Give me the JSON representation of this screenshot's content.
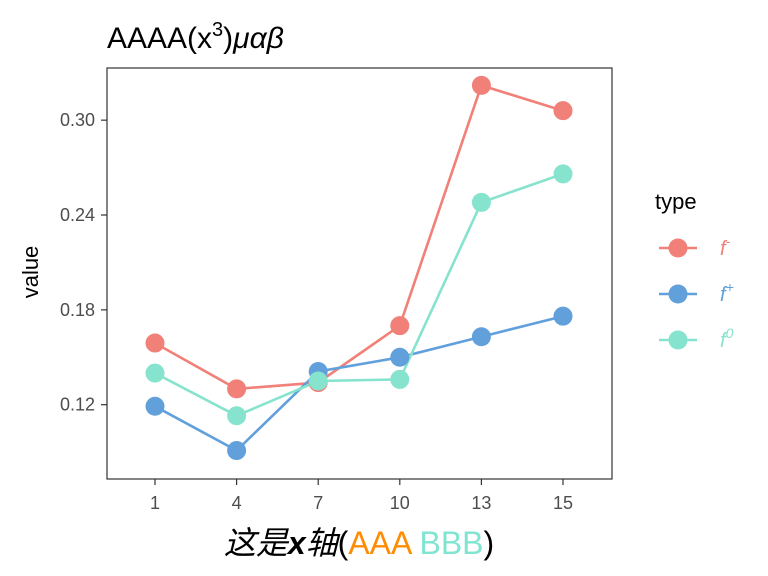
{
  "chart_data": {
    "type": "line",
    "title": {
      "prefix": "AAAA(x",
      "superscript": "3",
      "suffix": ")",
      "italic": "μαβ"
    },
    "xlabel": {
      "italic_chinese": "这是",
      "bold_italic": "x",
      "italic_chinese2": "轴",
      "open": "(",
      "part1": "AAA",
      "part2": "BBB",
      "close": ")",
      "part1_color": "#ff8c00",
      "part2_color": "#7fe5d0"
    },
    "ylabel": "value",
    "x": [
      1,
      4,
      7,
      10,
      13,
      15
    ],
    "x_ticks": [
      "1",
      "4",
      "7",
      "10",
      "13",
      "15"
    ],
    "y_ticks": [
      {
        "value": 0.12,
        "label": "0.12"
      },
      {
        "value": 0.18,
        "label": "0.18"
      },
      {
        "value": 0.24,
        "label": "0.24"
      },
      {
        "value": 0.3,
        "label": "0.30"
      }
    ],
    "ylim": [
      0.073,
      0.333
    ],
    "x_positions": "categorical (equally spaced)",
    "grid": false,
    "legend": {
      "title": "type",
      "placement": "right"
    },
    "series": [
      {
        "name": "f-",
        "base": "f",
        "sup": "-",
        "color": "#f08078",
        "values": [
          0.159,
          0.13,
          0.134,
          0.17,
          0.322,
          0.306
        ]
      },
      {
        "name": "f+",
        "base": "f",
        "sup": "+",
        "color": "#62a0dc",
        "values": [
          0.119,
          0.091,
          0.141,
          0.15,
          0.163,
          0.176
        ]
      },
      {
        "name": "f0",
        "base": "f",
        "sup": "0",
        "color": "#86e3cd",
        "values": [
          0.14,
          0.113,
          0.135,
          0.136,
          0.248,
          0.266
        ]
      }
    ]
  }
}
